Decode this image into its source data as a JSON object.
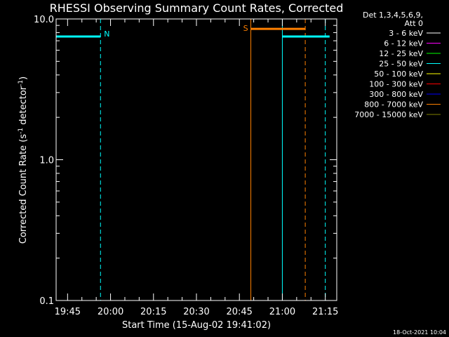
{
  "chart_data": {
    "type": "line",
    "title": "RHESSI Observing Summary Count Rates, Corrected",
    "xlabel": "Start Time (15-Aug-02 19:41:02)",
    "ylabel": "Corrected Count Rate (s",
    "ylabel_sup1": "-1",
    "ylabel_mid": " detector",
    "ylabel_sup2": "-1",
    "ylabel_end": ")",
    "yscale": "log",
    "ylim": [
      0.1,
      10.0
    ],
    "yticks": [
      {
        "value": 0.1,
        "label": "0.1"
      },
      {
        "value": 1.0,
        "label": "1.0"
      },
      {
        "value": 10.0,
        "label": "10.0"
      }
    ],
    "xlim_min": [
      1181,
      1279
    ],
    "xticks": [
      {
        "value": 1185,
        "label": "19:45"
      },
      {
        "value": 1200,
        "label": "20:00"
      },
      {
        "value": 1215,
        "label": "20:15"
      },
      {
        "value": 1230,
        "label": "20:30"
      },
      {
        "value": 1245,
        "label": "20:45"
      },
      {
        "value": 1260,
        "label": "21:00"
      },
      {
        "value": 1275,
        "label": "21:15"
      }
    ],
    "legend": {
      "position": "top-right",
      "header": [
        "Det 1,3,4,5,6,9,",
        "Att 0"
      ],
      "entries": [
        {
          "label": "3 - 6 keV",
          "color": "#ffffff"
        },
        {
          "label": "6 - 12 keV",
          "color": "#ff00ff"
        },
        {
          "label": "12 - 25 keV",
          "color": "#00ff00"
        },
        {
          "label": "25 - 50 keV",
          "color": "#00ffff"
        },
        {
          "label": "50 - 100 keV",
          "color": "#ffff00"
        },
        {
          "label": "100 - 300 keV",
          "color": "#ff0000"
        },
        {
          "label": "300 - 800 keV",
          "color": "#0000ff"
        },
        {
          "label": "800 - 7000 keV",
          "color": "#ff8000"
        },
        {
          "label": "7000 - 15000 keV",
          "color": "#808000"
        }
      ]
    },
    "series": [
      {
        "color": "#00ffff",
        "points": [
          [
            1181.0,
            7.5
          ],
          [
            1196.5,
            7.5
          ]
        ]
      },
      {
        "color": "#00ffff",
        "points": [
          [
            1260.0,
            7.5
          ],
          [
            1276.5,
            7.5
          ]
        ]
      },
      {
        "color": "#ff8000",
        "points": [
          [
            1249.0,
            8.5
          ],
          [
            1268.0,
            8.5
          ]
        ]
      }
    ],
    "vlines": [
      {
        "x": 1181.0,
        "color": "#00ffff",
        "style": "solid"
      },
      {
        "x": 1196.5,
        "color": "#00ffff",
        "style": "dashed",
        "label": "N"
      },
      {
        "x": 1249.0,
        "color": "#ff8000",
        "style": "solid",
        "label": "S"
      },
      {
        "x": 1260.0,
        "color": "#00ffff",
        "style": "solid"
      },
      {
        "x": 1268.0,
        "color": "#ff8000",
        "style": "dashed"
      },
      {
        "x": 1275.0,
        "color": "#00ffff",
        "style": "dashed"
      }
    ],
    "grid": false,
    "footer_date": "18-Oct-2021 10:04"
  }
}
